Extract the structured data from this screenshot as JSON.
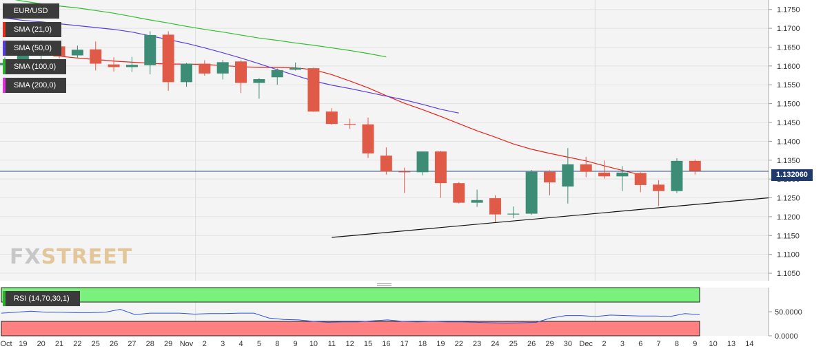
{
  "symbol": "EUR/USD",
  "indicators": {
    "sma21": "SMA (21,0)",
    "sma50": "SMA (50,0)",
    "sma100": "SMA (100,0)",
    "sma200": "SMA (200,0)",
    "rsi": "RSI (14,70,30,1)"
  },
  "last_price": "1.132060",
  "watermark": {
    "part1": "FX",
    "part2": "STREET"
  },
  "colors": {
    "bull": "#3d8c76",
    "bear": "#df5b47",
    "sma21": "#e8231a",
    "sma50": "#5a3de0",
    "sma100": "#2fbf2f",
    "trendline": "#111111",
    "rsi_line": "#2b55e0",
    "overbought_zone": "#7cf07c",
    "oversold_zone": "#ff8080",
    "last_price_bg": "#1f3a6e"
  },
  "chart_data": {
    "type": "candlestick",
    "title": "EUR/USD",
    "ylim": [
      1.103,
      1.1775
    ],
    "y_ticks": [
      "1.1750",
      "1.1700",
      "1.1650",
      "1.1600",
      "1.1550",
      "1.1500",
      "1.1450",
      "1.1400",
      "1.1350",
      "1.1300",
      "1.1250",
      "1.1200",
      "1.1150",
      "1.1100",
      "1.1050"
    ],
    "x_tick_labels": [
      "Oct",
      "19",
      "20",
      "21",
      "22",
      "25",
      "26",
      "27",
      "28",
      "29",
      "Nov",
      "2",
      "3",
      "4",
      "5",
      "8",
      "9",
      "10",
      "11",
      "12",
      "15",
      "16",
      "17",
      "18",
      "19",
      "22",
      "23",
      "24",
      "25",
      "26",
      "29",
      "30",
      "Dec",
      "2",
      "3",
      "6",
      "7",
      "8",
      "9",
      "10",
      "13",
      "14"
    ],
    "candles": [
      {
        "date": "Oct 18",
        "open": 1.1602,
        "high": 1.1623,
        "low": 1.1587,
        "close": 1.1608
      },
      {
        "date": "Oct 19",
        "open": 1.161,
        "high": 1.1668,
        "low": 1.1595,
        "close": 1.1642
      },
      {
        "date": "Oct 20",
        "open": 1.164,
        "high": 1.1668,
        "low": 1.16,
        "close": 1.1652
      },
      {
        "date": "Oct 21",
        "open": 1.1652,
        "high": 1.1667,
        "low": 1.162,
        "close": 1.1625
      },
      {
        "date": "Oct 22",
        "open": 1.1628,
        "high": 1.1654,
        "low": 1.162,
        "close": 1.1643
      },
      {
        "date": "Oct 25",
        "open": 1.1644,
        "high": 1.1665,
        "low": 1.1588,
        "close": 1.1606
      },
      {
        "date": "Oct 26",
        "open": 1.1604,
        "high": 1.1623,
        "low": 1.1585,
        "close": 1.1597
      },
      {
        "date": "Oct 27",
        "open": 1.1597,
        "high": 1.1624,
        "low": 1.1584,
        "close": 1.1603
      },
      {
        "date": "Oct 28",
        "open": 1.1602,
        "high": 1.1692,
        "low": 1.1578,
        "close": 1.1682
      },
      {
        "date": "Oct 29",
        "open": 1.1683,
        "high": 1.1692,
        "low": 1.1534,
        "close": 1.1557
      },
      {
        "date": "Nov 1",
        "open": 1.1557,
        "high": 1.1608,
        "low": 1.1545,
        "close": 1.1606
      },
      {
        "date": "Nov 2",
        "open": 1.1606,
        "high": 1.1615,
        "low": 1.1574,
        "close": 1.158
      },
      {
        "date": "Nov 3",
        "open": 1.158,
        "high": 1.1616,
        "low": 1.1564,
        "close": 1.161
      },
      {
        "date": "Nov 4",
        "open": 1.1612,
        "high": 1.1615,
        "low": 1.1528,
        "close": 1.1555
      },
      {
        "date": "Nov 5",
        "open": 1.1555,
        "high": 1.1568,
        "low": 1.1513,
        "close": 1.1565
      },
      {
        "date": "Nov 8",
        "open": 1.157,
        "high": 1.1593,
        "low": 1.155,
        "close": 1.1589
      },
      {
        "date": "Nov 9",
        "open": 1.159,
        "high": 1.1609,
        "low": 1.1588,
        "close": 1.1595
      },
      {
        "date": "Nov 10",
        "open": 1.1594,
        "high": 1.1596,
        "low": 1.1478,
        "close": 1.1479
      },
      {
        "date": "Nov 11",
        "open": 1.1479,
        "high": 1.1488,
        "low": 1.1444,
        "close": 1.1446
      },
      {
        "date": "Nov 12",
        "open": 1.1446,
        "high": 1.146,
        "low": 1.1433,
        "close": 1.1445
      },
      {
        "date": "Nov 15",
        "open": 1.1445,
        "high": 1.1463,
        "low": 1.1356,
        "close": 1.1368
      },
      {
        "date": "Nov 16",
        "open": 1.1362,
        "high": 1.1384,
        "low": 1.1312,
        "close": 1.132
      },
      {
        "date": "Nov 17",
        "open": 1.132,
        "high": 1.133,
        "low": 1.1263,
        "close": 1.1318
      },
      {
        "date": "Nov 18",
        "open": 1.1318,
        "high": 1.1373,
        "low": 1.131,
        "close": 1.1373
      },
      {
        "date": "Nov 19",
        "open": 1.1373,
        "high": 1.1375,
        "low": 1.125,
        "close": 1.1289
      },
      {
        "date": "Nov 22",
        "open": 1.1289,
        "high": 1.1292,
        "low": 1.1235,
        "close": 1.1237
      },
      {
        "date": "Nov 23",
        "open": 1.1237,
        "high": 1.1272,
        "low": 1.1226,
        "close": 1.1244
      },
      {
        "date": "Nov 24",
        "open": 1.1249,
        "high": 1.1257,
        "low": 1.1185,
        "close": 1.1206
      },
      {
        "date": "Nov 25",
        "open": 1.1206,
        "high": 1.1227,
        "low": 1.1196,
        "close": 1.1208
      },
      {
        "date": "Nov 26",
        "open": 1.1208,
        "high": 1.1324,
        "low": 1.1205,
        "close": 1.1319
      },
      {
        "date": "Nov 29",
        "open": 1.1319,
        "high": 1.1323,
        "low": 1.1257,
        "close": 1.1291
      },
      {
        "date": "Nov 30",
        "open": 1.128,
        "high": 1.1382,
        "low": 1.1235,
        "close": 1.1339
      },
      {
        "date": "Dec 1",
        "open": 1.1339,
        "high": 1.1359,
        "low": 1.1305,
        "close": 1.1319
      },
      {
        "date": "Dec 2",
        "open": 1.1317,
        "high": 1.1349,
        "low": 1.1301,
        "close": 1.1307
      },
      {
        "date": "Dec 3",
        "open": 1.1307,
        "high": 1.1334,
        "low": 1.1268,
        "close": 1.1317
      },
      {
        "date": "Dec 6",
        "open": 1.1316,
        "high": 1.1318,
        "low": 1.1265,
        "close": 1.1284
      },
      {
        "date": "Dec 7",
        "open": 1.1285,
        "high": 1.1297,
        "low": 1.1228,
        "close": 1.1268
      },
      {
        "date": "Dec 8",
        "open": 1.1268,
        "high": 1.1355,
        "low": 1.1263,
        "close": 1.1348
      },
      {
        "date": "Dec 9",
        "open": 1.1348,
        "high": 1.1352,
        "low": 1.1312,
        "close": 1.1321
      }
    ],
    "series": [
      {
        "name": "SMA (21,0)",
        "values": [
          1.1646,
          1.1638,
          1.1632,
          1.1626,
          1.1621,
          1.1617,
          1.1613,
          1.161,
          1.1607,
          1.1605,
          1.1605,
          1.1604,
          1.1601,
          1.1598,
          1.1596,
          1.1596,
          1.1595,
          1.159,
          1.1577,
          1.156,
          1.1542,
          1.1521,
          1.1501,
          1.1484,
          1.1466,
          1.1447,
          1.1428,
          1.1411,
          1.1393,
          1.1379,
          1.1368,
          1.1358,
          1.1348,
          1.1335,
          1.1323,
          1.1311
        ]
      },
      {
        "name": "SMA (50,0)",
        "values": [
          1.1727,
          1.1721,
          1.1717,
          1.1712,
          1.1707,
          1.1702,
          1.1697,
          1.169,
          1.168,
          1.167,
          1.166,
          1.1648,
          1.1635,
          1.1621,
          1.1606,
          1.159,
          1.1575,
          1.156,
          1.1549,
          1.154,
          1.153,
          1.152,
          1.151,
          1.1498,
          1.1485,
          1.1475
        ]
      },
      {
        "name": "SMA (100,0)",
        "values": [
          1.1781,
          1.1772,
          1.1765,
          1.1759,
          1.1754,
          1.1747,
          1.174,
          1.1731,
          1.1722,
          1.1714,
          1.1705,
          1.1697,
          1.169,
          1.1682,
          1.1674,
          1.1668,
          1.1661,
          1.1655,
          1.1648,
          1.1641,
          1.1633,
          1.1624
        ]
      },
      {
        "name": "Trendline",
        "x": [
          "Nov 10",
          "Dec 14"
        ],
        "values": [
          1.1145,
          1.125
        ]
      }
    ],
    "rsi": {
      "label": "RSI (14,70,30,1)",
      "ticks": [
        "50.0000",
        "0.0000"
      ],
      "values": [
        47,
        49,
        51,
        49,
        49,
        48,
        48,
        49,
        55,
        44,
        47,
        47,
        47,
        45,
        46,
        46,
        47,
        47,
        37,
        34,
        33,
        30,
        28,
        29,
        29,
        31,
        33,
        30,
        29,
        30,
        29,
        29,
        28,
        27,
        26,
        27,
        28,
        37,
        42,
        42,
        40,
        43,
        42,
        41,
        41,
        40,
        46,
        44
      ]
    },
    "last_price": 1.13206
  }
}
